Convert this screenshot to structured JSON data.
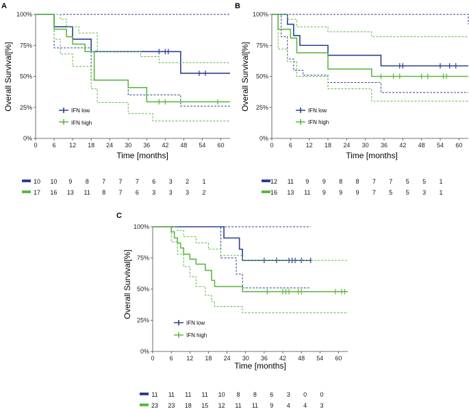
{
  "colors": {
    "low": "#2b3e94",
    "high": "#5cb83f"
  },
  "chart_data": [
    {
      "type": "line",
      "panel_label": "A",
      "xlabel": "Time [months]",
      "ylabel": "Overall Survival[%]",
      "xlim": [
        0,
        63
      ],
      "ylim": [
        0,
        100
      ],
      "x_ticks": [
        "0",
        "6",
        "12",
        "18",
        "24",
        "30",
        "36",
        "42",
        "48",
        "54",
        "60"
      ],
      "y_ticks": [
        "0%",
        "25%",
        "50%",
        "75%",
        "100%"
      ],
      "legend": [
        "IFN low",
        "IFN high"
      ],
      "series": [
        {
          "name": "IFN low",
          "color_key": "low",
          "steps": [
            [
              0,
              100
            ],
            [
              6,
              90
            ],
            [
              12,
              80
            ],
            [
              18,
              70
            ],
            [
              47,
              52.5
            ],
            [
              63,
              52.5
            ]
          ],
          "censor_x": [
            40,
            42,
            43,
            53,
            55
          ],
          "ci_upper": [
            [
              0,
              100
            ],
            [
              63,
              100
            ]
          ],
          "ci_lower": [
            [
              0,
              100
            ],
            [
              6,
              73
            ],
            [
              18,
              47
            ],
            [
              30,
              35
            ],
            [
              47,
              26
            ],
            [
              63,
              26
            ]
          ]
        },
        {
          "name": "IFN high",
          "color_key": "high",
          "steps": [
            [
              0,
              100
            ],
            [
              6,
              88
            ],
            [
              10,
              82
            ],
            [
              12,
              76
            ],
            [
              16,
              70
            ],
            [
              19,
              47
            ],
            [
              30,
              41
            ],
            [
              36,
              29.5
            ],
            [
              63,
              29.5
            ]
          ],
          "censor_x": [
            40,
            42,
            59
          ],
          "ci_upper": [
            [
              0,
              100
            ],
            [
              8,
              96
            ],
            [
              10,
              90
            ],
            [
              14,
              85
            ],
            [
              20,
              70
            ],
            [
              34,
              66
            ],
            [
              40,
              61
            ],
            [
              63,
              61
            ]
          ],
          "ci_lower": [
            [
              0,
              100
            ],
            [
              6,
              80
            ],
            [
              8,
              68
            ],
            [
              12,
              58
            ],
            [
              18,
              40
            ],
            [
              20,
              29
            ],
            [
              30,
              20
            ],
            [
              38,
              14
            ],
            [
              63,
              14
            ]
          ]
        }
      ],
      "at_risk": {
        "IFN low": [
          "10",
          "10",
          "9",
          "8",
          "7",
          "7",
          "7",
          "6",
          "3",
          "2",
          "1"
        ],
        "IFN high": [
          "17",
          "16",
          "13",
          "11",
          "8",
          "7",
          "6",
          "3",
          "3",
          "3",
          "2"
        ]
      }
    },
    {
      "type": "line",
      "panel_label": "B",
      "xlabel": "Time [months]",
      "ylabel": "Overall Survival[%]",
      "xlim": [
        0,
        63
      ],
      "ylim": [
        0,
        100
      ],
      "x_ticks": [
        "0",
        "6",
        "12",
        "18",
        "24",
        "30",
        "36",
        "42",
        "48",
        "54",
        "60"
      ],
      "y_ticks": [
        "0%",
        "25%",
        "50%",
        "75%",
        "100%"
      ],
      "legend": [
        "IFN low",
        "IFN high"
      ],
      "series": [
        {
          "name": "IFN low",
          "color_key": "low",
          "steps": [
            [
              0,
              100
            ],
            [
              5,
              92
            ],
            [
              7,
              83
            ],
            [
              9,
              75
            ],
            [
              18,
              67
            ],
            [
              35,
              58.5
            ],
            [
              63,
              58.5
            ]
          ],
          "censor_x": [
            41,
            42,
            54,
            57,
            59
          ],
          "ci_upper": [
            [
              0,
              100
            ],
            [
              35,
              100
            ],
            [
              63,
              92
            ]
          ],
          "ci_lower": [
            [
              0,
              100
            ],
            [
              3,
              82
            ],
            [
              5,
              64
            ],
            [
              7,
              55
            ],
            [
              10,
              51
            ],
            [
              18,
              45
            ],
            [
              35,
              37
            ],
            [
              63,
              37
            ]
          ]
        },
        {
          "name": "IFN high",
          "color_key": "high",
          "steps": [
            [
              0,
              100
            ],
            [
              2,
              88
            ],
            [
              6,
              81
            ],
            [
              8,
              69
            ],
            [
              18,
              56
            ],
            [
              32,
              50
            ],
            [
              63,
              50
            ]
          ],
          "censor_x": [
            35,
            39,
            41,
            48,
            50,
            55,
            56
          ],
          "ci_upper": [
            [
              0,
              100
            ],
            [
              5,
              96
            ],
            [
              8,
              90
            ],
            [
              18,
              86
            ],
            [
              32,
              82
            ],
            [
              63,
              82
            ]
          ],
          "ci_lower": [
            [
              0,
              100
            ],
            [
              2,
              72
            ],
            [
              5,
              62
            ],
            [
              8,
              50
            ],
            [
              18,
              40
            ],
            [
              32,
              30
            ],
            [
              63,
              30
            ]
          ]
        }
      ],
      "at_risk": {
        "IFN low": [
          "12",
          "11",
          "9",
          "9",
          "8",
          "8",
          "7",
          "7",
          "5",
          "5",
          "1"
        ],
        "IFN high": [
          "16",
          "13",
          "11",
          "9",
          "9",
          "9",
          "7",
          "5",
          "5",
          "3",
          "1"
        ]
      }
    },
    {
      "type": "line",
      "panel_label": "C",
      "xlabel": "Time [months]",
      "ylabel": "Overall Survival[%]",
      "xlim": [
        0,
        63
      ],
      "ylim": [
        0,
        100
      ],
      "x_ticks": [
        "0",
        "6",
        "12",
        "18",
        "24",
        "30",
        "36",
        "42",
        "48",
        "54",
        "60"
      ],
      "y_ticks": [
        "0%",
        "25%",
        "50%",
        "75%",
        "100%"
      ],
      "legend": [
        "IFN low",
        "IFN high"
      ],
      "series": [
        {
          "name": "IFN low",
          "color_key": "low",
          "steps": [
            [
              0,
              100
            ],
            [
              23,
              91
            ],
            [
              28,
              82
            ],
            [
              29,
              73
            ],
            [
              51,
              73
            ]
          ],
          "censor_x": [
            36,
            40,
            44,
            45,
            46,
            48,
            51
          ],
          "ci_upper": [
            [
              0,
              100
            ],
            [
              51,
              100
            ]
          ],
          "ci_lower": [
            [
              0,
              100
            ],
            [
              22,
              75
            ],
            [
              27,
              62
            ],
            [
              29,
              51
            ],
            [
              51,
              51
            ]
          ]
        },
        {
          "name": "IFN high",
          "color_key": "high",
          "steps": [
            [
              0,
              100
            ],
            [
              6,
              96
            ],
            [
              7,
              91
            ],
            [
              8,
              87
            ],
            [
              9,
              83
            ],
            [
              10,
              78
            ],
            [
              12,
              74
            ],
            [
              14,
              70
            ],
            [
              17,
              65
            ],
            [
              19,
              57
            ],
            [
              20,
              52
            ],
            [
              29,
              48
            ],
            [
              63,
              48
            ]
          ],
          "censor_x": [
            37,
            42,
            43,
            44,
            47,
            48,
            59,
            61,
            62
          ],
          "ci_upper": [
            [
              0,
              100
            ],
            [
              8,
              97
            ],
            [
              10,
              92
            ],
            [
              14,
              87
            ],
            [
              18,
              82
            ],
            [
              22,
              77
            ],
            [
              29,
              73
            ],
            [
              63,
              73
            ]
          ],
          "ci_lower": [
            [
              0,
              100
            ],
            [
              6,
              88
            ],
            [
              8,
              78
            ],
            [
              10,
              68
            ],
            [
              12,
              60
            ],
            [
              14,
              52
            ],
            [
              17,
              45
            ],
            [
              19,
              40
            ],
            [
              20,
              36
            ],
            [
              29,
              31
            ],
            [
              63,
              31
            ]
          ]
        }
      ],
      "at_risk": {
        "IFN low": [
          "11",
          "11",
          "11",
          "11",
          "10",
          "8",
          "8",
          "6",
          "3",
          "0",
          "0"
        ],
        "IFN high": [
          "23",
          "23",
          "18",
          "15",
          "12",
          "11",
          "11",
          "9",
          "4",
          "4",
          "3"
        ]
      }
    }
  ]
}
